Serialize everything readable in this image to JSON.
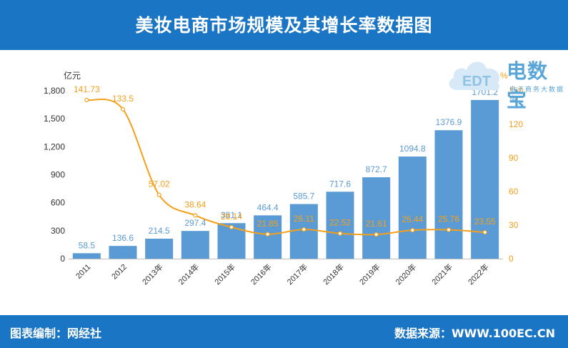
{
  "header": {
    "title": "美妆电商市场规模及其增长率数据图"
  },
  "footer": {
    "left": "图表编制：网经社",
    "right": "数据来源：WWW.100EC.CN"
  },
  "logo": {
    "name": "电数宝",
    "sub": "电子商务大数据库",
    "icon_text": "EDT"
  },
  "colors": {
    "header_bg": "#1a75c4",
    "bar": "#5b9bd5",
    "line": "#f5a01a",
    "bar_label": "#5b9bd5",
    "line_label": "#f5a01a"
  },
  "chart_data": {
    "type": "bar",
    "categories": [
      "2011",
      "2012",
      "2013年",
      "2014年",
      "2015年",
      "2016年",
      "2017年",
      "2018年",
      "2019年",
      "2020年",
      "2021年",
      "2022年"
    ],
    "y_unit_left": "亿元",
    "y_unit_right": "%",
    "ylim_left": [
      0,
      1800
    ],
    "yticks_left": [
      "0",
      "300",
      "600",
      "900",
      "1,200",
      "1,500",
      "1,800"
    ],
    "ylim_right": [
      0,
      150
    ],
    "yticks_right": [
      "0",
      "30",
      "60",
      "90",
      "120",
      "150"
    ],
    "grid": false,
    "series": [
      {
        "type": "bar",
        "axis": "left",
        "values": [
          58.5,
          136.6,
          214.5,
          297.4,
          381.1,
          464.4,
          585.7,
          717.6,
          872.7,
          1094.8,
          1376.9,
          1701.2
        ],
        "labels": [
          "58.5",
          "136.6",
          "214.5",
          "297.4",
          "381.1",
          "464.4",
          "585.7",
          "717.6",
          "872.7",
          "1094.8",
          "1376.9",
          "1701.2"
        ]
      },
      {
        "type": "line",
        "axis": "right",
        "smooth": true,
        "values": [
          141.73,
          133.5,
          57.02,
          38.64,
          28.14,
          21.85,
          26.11,
          22.52,
          21.61,
          25.44,
          25.76,
          23.55
        ],
        "labels": [
          "141.73",
          "133.5",
          "57.02",
          "38.64",
          "28.14",
          "21.85",
          "26.11",
          "22.52",
          "21.61",
          "25.44",
          "25.76",
          "23.55"
        ]
      }
    ]
  }
}
